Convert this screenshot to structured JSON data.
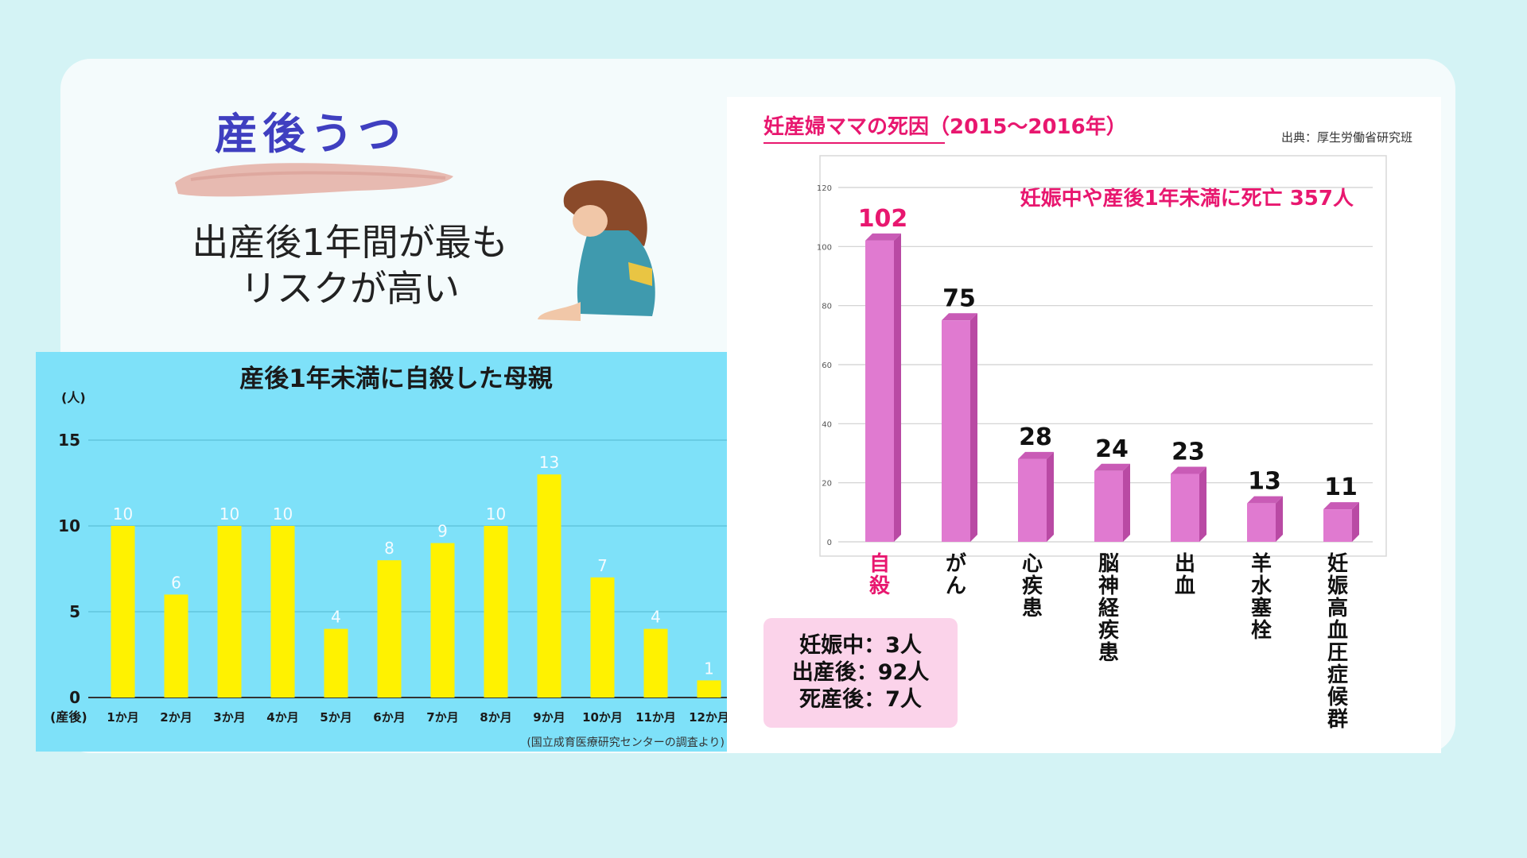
{
  "header": {
    "title": "産後うつ",
    "risk_line1": "出産後1年間が最も",
    "risk_line2": "リスクが高い"
  },
  "colors": {
    "background": "#d4f3f5",
    "card": "#f4fbfc",
    "title_blue": "#3f3fc0",
    "left_bg": "#7ee1f9",
    "left_bar": "#fff200",
    "right_bar": "#e07ad0",
    "accent_pink": "#e8176f"
  },
  "left_chart_labels": {
    "unit": "(人)",
    "source": "(国立成育医療研究センターの調査より)",
    "x_prefix": "(産後)"
  },
  "right_chart_labels": {
    "source": "出典：厚生労働省研究班",
    "annotation": "妊娠中や産後1年未満に死亡 357人"
  },
  "notes": {
    "line1": "妊娠中：3人",
    "line2": "出産後：92人",
    "line3": "死産後：7人"
  },
  "chart_data": [
    {
      "type": "bar",
      "title": "産後1年未満に自殺した母親",
      "ylabel": "(人)",
      "categories": [
        "1か月",
        "2か月",
        "3か月",
        "4か月",
        "5か月",
        "6か月",
        "7か月",
        "8か月",
        "9か月",
        "10か月",
        "11か月",
        "12か月"
      ],
      "values": [
        10,
        6,
        10,
        10,
        4,
        8,
        9,
        10,
        13,
        7,
        4,
        1
      ],
      "ylim": [
        0,
        15
      ],
      "yticks": [
        0,
        5,
        10,
        15
      ],
      "grid": true
    },
    {
      "type": "bar",
      "title": "妊産婦ママの死因（2015〜2016年）",
      "categories": [
        "自殺",
        "がん",
        "心疾患",
        "脳神経疾患",
        "出血",
        "羊水塞栓",
        "妊娠高血圧症候群"
      ],
      "values": [
        102,
        75,
        28,
        24,
        23,
        13,
        11
      ],
      "ylim": [
        0,
        120
      ],
      "yticks": [
        0,
        20,
        40,
        60,
        80,
        100,
        120
      ],
      "grid": true
    }
  ]
}
